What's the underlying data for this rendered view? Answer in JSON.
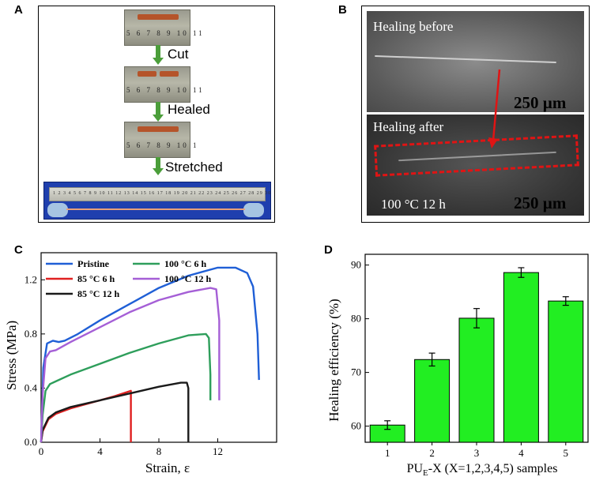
{
  "panel_a": {
    "letter": "A",
    "steps": [
      "Cut",
      "Healed",
      "Stretched"
    ],
    "ruler_short": "5 6 7 8 9 10 11",
    "ruler_short_3": "5 6 7 8 9 10 1",
    "ruler_long": "1 2 3 4 5 6 7 8 9 10 11 12 13 14 15 16 17 18 19 20 21 22 23 24 25 26 27 28 29 30"
  },
  "panel_b": {
    "letter": "B",
    "before_label": "Healing before",
    "after_label": "Healing after",
    "scale_top": "250 µm",
    "scale_bottom": "250 µm",
    "condition": "100 °C  12 h",
    "colors": {
      "box": "#e01414"
    }
  },
  "chart_data": [
    {
      "letter": "C",
      "type": "line",
      "xlabel": "Strain, ε",
      "ylabel": "Stress (MPa)",
      "xlim": [
        0,
        16
      ],
      "ylim": [
        0,
        1.4
      ],
      "xticks": [
        0,
        4,
        8,
        12
      ],
      "yticks": [
        0.0,
        0.4,
        0.8,
        1.2
      ],
      "series": [
        {
          "name": "Pristine",
          "color": "#1f5fd6",
          "x": [
            0,
            0.15,
            0.4,
            0.8,
            1.2,
            1.6,
            2.5,
            4,
            6,
            8,
            10,
            12,
            13.2,
            14,
            14.4,
            14.7,
            14.8
          ],
          "y": [
            0,
            0.55,
            0.73,
            0.75,
            0.74,
            0.75,
            0.8,
            0.9,
            1.02,
            1.14,
            1.23,
            1.29,
            1.29,
            1.25,
            1.15,
            0.8,
            0.46
          ]
        },
        {
          "name": "85 °C 6 h",
          "color": "#e02020",
          "x": [
            0,
            0.1,
            0.5,
            1,
            2,
            3,
            4,
            5,
            6.1,
            6.1
          ],
          "y": [
            0,
            0.08,
            0.17,
            0.21,
            0.25,
            0.28,
            0.31,
            0.34,
            0.38,
            0.0
          ]
        },
        {
          "name": "85 °C 12 h",
          "color": "#1a1a1a",
          "x": [
            0,
            0.1,
            0.5,
            1,
            2,
            4,
            6,
            8,
            9.5,
            9.9,
            10.0,
            10.0
          ],
          "y": [
            0,
            0.09,
            0.18,
            0.22,
            0.26,
            0.31,
            0.36,
            0.41,
            0.44,
            0.44,
            0.4,
            0.0
          ]
        },
        {
          "name": "100 °C 6 h",
          "color": "#2e9e5b",
          "x": [
            0,
            0.1,
            0.3,
            0.6,
            1,
            2,
            4,
            6,
            8,
            10,
            11.2,
            11.4,
            11.5,
            11.5
          ],
          "y": [
            0,
            0.2,
            0.38,
            0.43,
            0.45,
            0.5,
            0.58,
            0.66,
            0.73,
            0.79,
            0.8,
            0.77,
            0.5,
            0.31
          ]
        },
        {
          "name": "100 °C 12 h",
          "color": "#a55fd6",
          "x": [
            0,
            0.1,
            0.3,
            0.6,
            1,
            2,
            4,
            6,
            8,
            10,
            11.5,
            11.9,
            12.1,
            12.1
          ],
          "y": [
            0,
            0.35,
            0.62,
            0.67,
            0.68,
            0.74,
            0.85,
            0.96,
            1.05,
            1.11,
            1.14,
            1.13,
            0.9,
            0.31
          ]
        }
      ]
    },
    {
      "letter": "D",
      "type": "bar",
      "xlabel": "PU",
      "xlabel_sub": "E",
      "xlabel_rest": "-X (X=1,2,3,4,5) samples",
      "ylabel": "Healing efficiency (%)",
      "categories": [
        "1",
        "2",
        "3",
        "4",
        "5"
      ],
      "values": [
        60.2,
        72.4,
        80.1,
        88.6,
        83.3
      ],
      "errors": [
        0.8,
        1.2,
        1.8,
        0.9,
        0.8
      ],
      "ylim": [
        57,
        92
      ],
      "yticks": [
        60,
        70,
        80,
        90
      ],
      "color": "#22ee22"
    }
  ]
}
